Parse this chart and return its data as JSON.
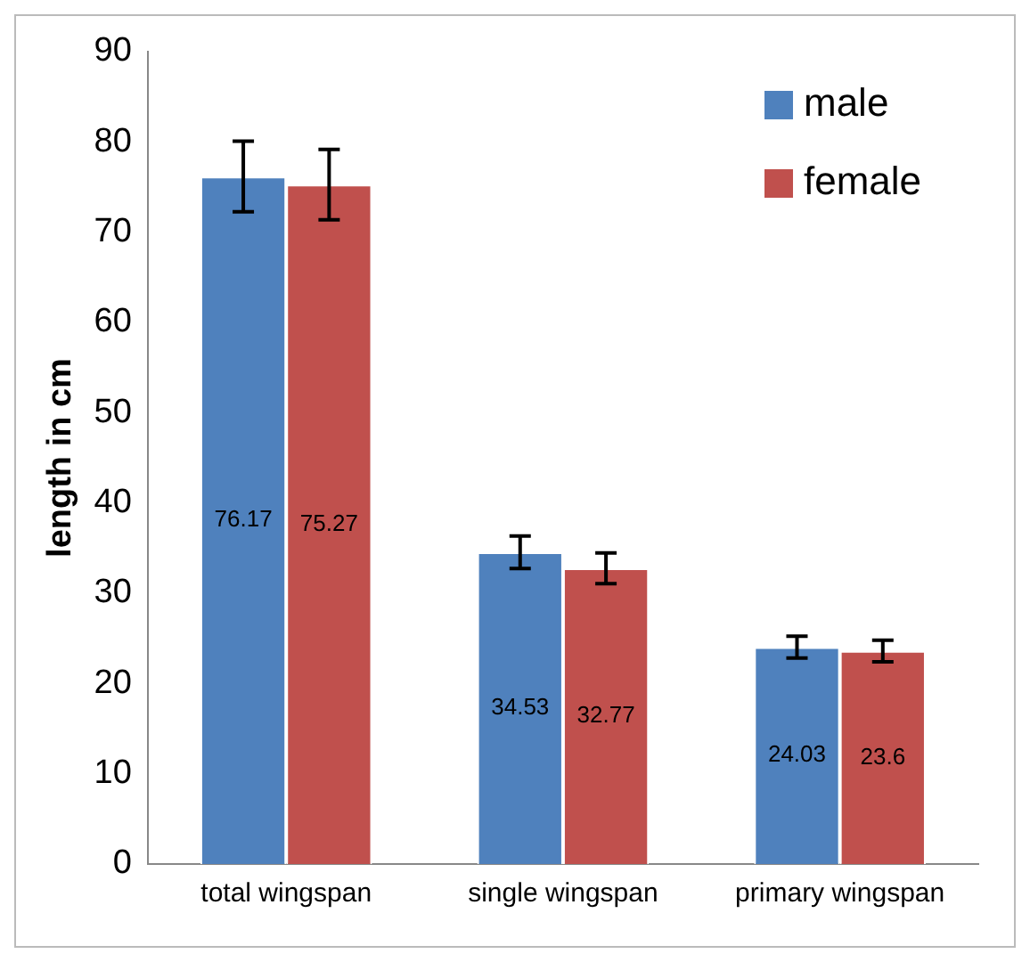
{
  "chart_data": {
    "type": "bar",
    "ylabel": "length in cm",
    "categories": [
      "total wingspan",
      "single wingspan",
      "primary wingspan"
    ],
    "series": [
      {
        "name": "male",
        "color": "#4f81bd",
        "values": [
          76.17,
          34.53,
          24.03
        ],
        "errors": [
          3.9,
          1.8,
          1.2
        ]
      },
      {
        "name": "female",
        "color": "#c0504d",
        "values": [
          75.27,
          32.77,
          23.6
        ],
        "errors": [
          3.9,
          1.7,
          1.2
        ]
      }
    ],
    "ylim": [
      0,
      90
    ],
    "yticks": [
      0,
      10,
      20,
      30,
      40,
      50,
      60,
      70,
      80,
      90
    ],
    "grid": false,
    "legend": "top right",
    "data_labels": true
  }
}
